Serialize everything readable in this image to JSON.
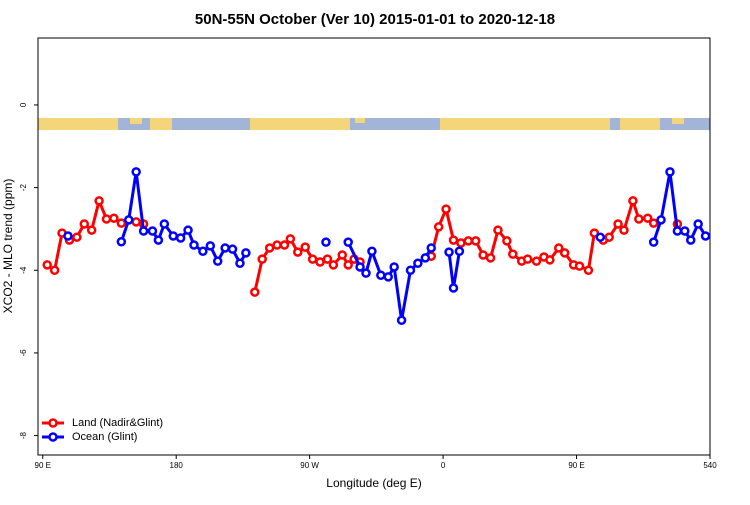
{
  "chart_data": {
    "type": "line",
    "title": "50N-55N October (Ver 10)   2015-01-01 to 2020-12-18",
    "x_label": "Longitude (deg E)",
    "y_label": "XCO2 - MLO trend (ppm)",
    "xlim": [
      86.8,
      540
    ],
    "ylim": [
      -8.47,
      1.62
    ],
    "xticks": [
      {
        "value": 90,
        "label": "90 E"
      },
      180,
      {
        "value": 270,
        "label": "90 W"
      },
      {
        "value": 360,
        "label": "0"
      },
      {
        "value": 450,
        "label": "90 E"
      },
      540
    ],
    "yticks": [
      0,
      -2,
      -4,
      -6,
      -8
    ],
    "legend": "bottom-left",
    "series": [
      {
        "name": "Land (Nadir&Glint)",
        "color": "#ff0000",
        "x": [
          93,
          98,
          103,
          108,
          113,
          118,
          123,
          128,
          133,
          138,
          143,
          153,
          158,
          null,
          233,
          238,
          243,
          248,
          253,
          257,
          262,
          267,
          272,
          277,
          282,
          286,
          292,
          296,
          300,
          304,
          null,
          352,
          357,
          362,
          367,
          372,
          377,
          382,
          387,
          392,
          397,
          403,
          407,
          413,
          417,
          423,
          428,
          432,
          438,
          442,
          448,
          452,
          458,
          462,
          468,
          472,
          478,
          482,
          488,
          492,
          498,
          502,
          null,
          518
        ],
        "values": [
          -3.87,
          -4.0,
          -3.1,
          -3.27,
          -3.2,
          -2.88,
          -3.03,
          -2.32,
          -2.76,
          -2.74,
          -2.86,
          -2.83,
          -2.88,
          null,
          -4.53,
          -3.73,
          -3.46,
          -3.39,
          -3.39,
          -3.24,
          -3.56,
          -3.44,
          -3.73,
          -3.8,
          -3.73,
          -3.87,
          -3.63,
          -3.87,
          -3.73,
          -3.8,
          null,
          -3.66,
          -2.95,
          -2.52,
          -3.27,
          -3.34,
          -3.29,
          -3.29,
          -3.63,
          -3.7,
          -3.03,
          -3.29,
          -3.61,
          -3.78,
          -3.73,
          -3.78,
          -3.68,
          -3.75,
          -3.46,
          -3.58,
          -3.87,
          -3.9,
          -4.0,
          -3.1,
          -3.27,
          -3.2,
          -2.88,
          -3.03,
          -2.32,
          -2.76,
          -2.74,
          -2.86,
          null,
          -2.88
        ]
      },
      {
        "name": "Ocean (Glint)",
        "color": "#0000ff",
        "x": [
          107,
          null,
          143,
          148,
          153,
          158,
          164,
          168,
          172,
          178,
          183,
          188,
          192,
          198,
          203,
          208,
          213,
          218,
          223,
          227,
          null,
          281,
          null,
          296,
          304,
          308,
          312,
          318,
          323,
          327,
          332,
          338,
          343,
          348,
          352,
          null,
          364,
          367,
          371,
          null,
          466,
          null,
          502,
          507,
          513,
          518,
          523,
          527,
          532,
          537
        ],
        "values": [
          -3.17,
          null,
          -3.31,
          -2.78,
          -1.62,
          -3.05,
          -3.05,
          -3.27,
          -2.88,
          -3.17,
          -3.22,
          -3.03,
          -3.39,
          -3.54,
          -3.41,
          -3.78,
          -3.46,
          -3.49,
          -3.83,
          -3.58,
          null,
          -3.32,
          null,
          -3.32,
          -3.92,
          -4.07,
          -3.54,
          -4.12,
          -4.16,
          -3.92,
          -5.21,
          -4.0,
          -3.83,
          -3.7,
          -3.46,
          null,
          -3.56,
          -4.43,
          -3.54,
          null,
          -3.2,
          null,
          -3.32,
          -2.78,
          -1.62,
          -3.05,
          -3.05,
          -3.27,
          -2.88,
          -3.17
        ]
      }
    ]
  }
}
